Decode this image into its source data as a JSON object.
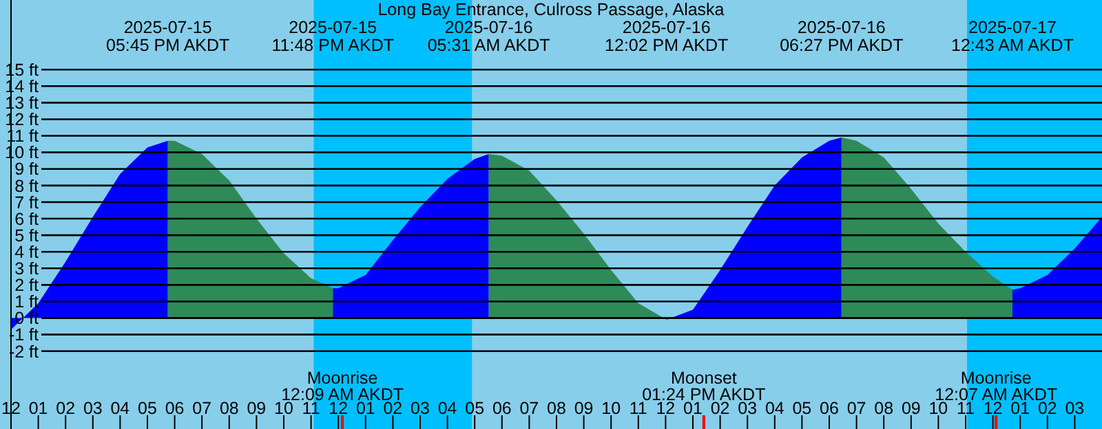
{
  "chart_data": {
    "type": "area",
    "title": "Long Bay Entrance, Culross Passage, Alaska",
    "xlim": [
      "2025-07-15T12:00",
      "2025-07-17T04:00"
    ],
    "xticks": [
      {
        "value": "2025-07-15T12:00",
        "label": "12"
      },
      {
        "value": "2025-07-15T13:00",
        "label": "01"
      },
      {
        "value": "2025-07-15T14:00",
        "label": "02"
      },
      {
        "value": "2025-07-15T15:00",
        "label": "03"
      },
      {
        "value": "2025-07-15T16:00",
        "label": "04"
      },
      {
        "value": "2025-07-15T17:00",
        "label": "05"
      },
      {
        "value": "2025-07-15T18:00",
        "label": "06"
      },
      {
        "value": "2025-07-15T19:00",
        "label": "07"
      },
      {
        "value": "2025-07-15T20:00",
        "label": "08"
      },
      {
        "value": "2025-07-15T21:00",
        "label": "09"
      },
      {
        "value": "2025-07-15T22:00",
        "label": "10"
      },
      {
        "value": "2025-07-15T23:00",
        "label": "11"
      },
      {
        "value": "2025-07-16T00:00",
        "label": "12"
      },
      {
        "value": "2025-07-16T01:00",
        "label": "01"
      },
      {
        "value": "2025-07-16T02:00",
        "label": "02"
      },
      {
        "value": "2025-07-16T03:00",
        "label": "03"
      },
      {
        "value": "2025-07-16T04:00",
        "label": "04"
      },
      {
        "value": "2025-07-16T05:00",
        "label": "05"
      },
      {
        "value": "2025-07-16T06:00",
        "label": "06"
      },
      {
        "value": "2025-07-16T07:00",
        "label": "07"
      },
      {
        "value": "2025-07-16T08:00",
        "label": "08"
      },
      {
        "value": "2025-07-16T09:00",
        "label": "09"
      },
      {
        "value": "2025-07-16T10:00",
        "label": "10"
      },
      {
        "value": "2025-07-16T11:00",
        "label": "11"
      },
      {
        "value": "2025-07-16T12:00",
        "label": "12"
      },
      {
        "value": "2025-07-16T13:00",
        "label": "01"
      },
      {
        "value": "2025-07-16T14:00",
        "label": "02"
      },
      {
        "value": "2025-07-16T15:00",
        "label": "03"
      },
      {
        "value": "2025-07-16T16:00",
        "label": "04"
      },
      {
        "value": "2025-07-16T17:00",
        "label": "05"
      },
      {
        "value": "2025-07-16T18:00",
        "label": "06"
      },
      {
        "value": "2025-07-16T19:00",
        "label": "07"
      },
      {
        "value": "2025-07-16T20:00",
        "label": "08"
      },
      {
        "value": "2025-07-16T21:00",
        "label": "09"
      },
      {
        "value": "2025-07-16T22:00",
        "label": "10"
      },
      {
        "value": "2025-07-16T23:00",
        "label": "11"
      },
      {
        "value": "2025-07-17T00:00",
        "label": "12"
      },
      {
        "value": "2025-07-17T01:00",
        "label": "01"
      },
      {
        "value": "2025-07-17T02:00",
        "label": "02"
      },
      {
        "value": "2025-07-17T03:00",
        "label": "03"
      }
    ],
    "ylim": [
      -6.7,
      19.2
    ],
    "yticks": [
      {
        "value": -2,
        "label": "-2 ft"
      },
      {
        "value": -1,
        "label": "-1 ft"
      },
      {
        "value": 0,
        "label": "0 ft"
      },
      {
        "value": 1,
        "label": "1 ft"
      },
      {
        "value": 2,
        "label": "2 ft"
      },
      {
        "value": 3,
        "label": "3 ft"
      },
      {
        "value": 4,
        "label": "4 ft"
      },
      {
        "value": 5,
        "label": "5 ft"
      },
      {
        "value": 6,
        "label": "6 ft"
      },
      {
        "value": 7,
        "label": "7 ft"
      },
      {
        "value": 8,
        "label": "8 ft"
      },
      {
        "value": 9,
        "label": "9 ft"
      },
      {
        "value": 10,
        "label": "10 ft"
      },
      {
        "value": 11,
        "label": "11 ft"
      },
      {
        "value": 12,
        "label": "12 ft"
      },
      {
        "value": 13,
        "label": "13 ft"
      },
      {
        "value": 14,
        "label": "14 ft"
      },
      {
        "value": 15,
        "label": "15 ft"
      }
    ],
    "grid": "y",
    "x": [
      "2025-07-15T12:00",
      "2025-07-15T13:00",
      "2025-07-15T14:00",
      "2025-07-15T15:00",
      "2025-07-15T16:00",
      "2025-07-15T17:00",
      "2025-07-15T17:45",
      "2025-07-15T18:00",
      "2025-07-15T19:00",
      "2025-07-15T20:00",
      "2025-07-15T21:00",
      "2025-07-15T22:00",
      "2025-07-15T23:00",
      "2025-07-15T23:48",
      "2025-07-16T00:00",
      "2025-07-16T01:00",
      "2025-07-16T02:00",
      "2025-07-16T03:00",
      "2025-07-16T04:00",
      "2025-07-16T05:00",
      "2025-07-16T05:31",
      "2025-07-16T06:00",
      "2025-07-16T07:00",
      "2025-07-16T08:00",
      "2025-07-16T09:00",
      "2025-07-16T10:00",
      "2025-07-16T11:00",
      "2025-07-16T12:02",
      "2025-07-16T13:00",
      "2025-07-16T14:00",
      "2025-07-16T15:00",
      "2025-07-16T16:00",
      "2025-07-16T17:00",
      "2025-07-16T18:00",
      "2025-07-16T18:27",
      "2025-07-16T19:00",
      "2025-07-16T20:00",
      "2025-07-16T21:00",
      "2025-07-16T22:00",
      "2025-07-16T23:00",
      "2025-07-17T00:00",
      "2025-07-17T00:43",
      "2025-07-17T01:00",
      "2025-07-17T02:00",
      "2025-07-17T03:00",
      "2025-07-17T04:00"
    ],
    "series": [
      {
        "color": "#0000ff",
        "values": [
          -0.7,
          0.9,
          3.4,
          6.1,
          8.7,
          10.3,
          10.7,
          null,
          null,
          null,
          null,
          null,
          null,
          1.8,
          1.8,
          2.6,
          4.7,
          6.7,
          8.4,
          9.6,
          9.9,
          null,
          null,
          null,
          null,
          null,
          null,
          -0.1,
          0.5,
          2.9,
          5.5,
          8.0,
          9.7,
          10.7,
          10.9,
          null,
          null,
          null,
          null,
          null,
          null,
          1.7,
          1.8,
          2.6,
          4.2,
          6.1
        ]
      },
      {
        "color": "#2e8b57",
        "values": [
          null,
          null,
          null,
          null,
          null,
          null,
          10.7,
          10.7,
          9.9,
          8.3,
          6.0,
          3.9,
          2.4,
          1.8,
          null,
          null,
          null,
          null,
          null,
          null,
          9.9,
          9.8,
          8.9,
          7.1,
          5.1,
          2.9,
          0.9,
          -0.1,
          null,
          null,
          null,
          null,
          null,
          null,
          10.9,
          10.7,
          9.7,
          7.8,
          5.7,
          4.0,
          2.5,
          1.7,
          null,
          null,
          null,
          null
        ]
      }
    ],
    "bands": [
      {
        "axis": "x",
        "from": "2025-07-15T23:06",
        "to": "2025-07-16T04:54",
        "color": "#00bfff"
      },
      {
        "axis": "x",
        "from": "2025-07-16T23:03",
        "to": "2025-07-17T04:00",
        "color": "#00bfff"
      }
    ],
    "ref_lines": [
      {
        "axis": "x",
        "value": "2025-07-16T00:09",
        "label": "Moonrise\n12:09 AM AKDT",
        "color": "#ff0000"
      },
      {
        "axis": "x",
        "value": "2025-07-16T13:24",
        "label": "Moonset\n01:24 PM AKDT",
        "color": "#ff0000"
      },
      {
        "axis": "x",
        "value": "2025-07-17T00:07",
        "label": "Moonrise\n12:07 AM AKDT",
        "color": "#ff0000"
      }
    ],
    "annotations": [
      "2025-07-15\n05:45 PM AKDT",
      "2025-07-15\n11:48 PM AKDT",
      "2025-07-16\n05:31 AM AKDT",
      "2025-07-16\n12:02 PM AKDT",
      "2025-07-16\n06:27 PM AKDT",
      "2025-07-17\n12:43 AM AKDT"
    ]
  }
}
